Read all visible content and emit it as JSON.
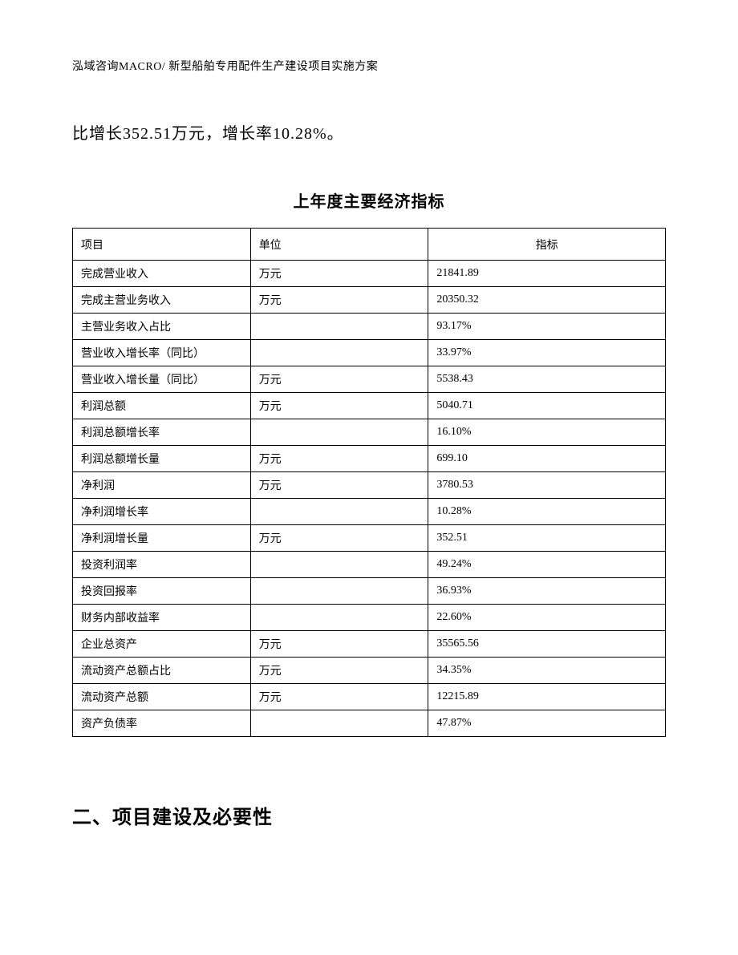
{
  "header": "泓域咨询MACRO/ 新型船舶专用配件生产建设项目实施方案",
  "intro_text": "比增长352.51万元，增长率10.28%。",
  "table": {
    "title": "上年度主要经济指标",
    "columns": {
      "item": "项目",
      "unit": "单位",
      "value": "指标"
    },
    "rows": [
      {
        "item": "完成营业收入",
        "unit": "万元",
        "value": "21841.89"
      },
      {
        "item": "完成主营业务收入",
        "unit": "万元",
        "value": "20350.32"
      },
      {
        "item": "主营业务收入占比",
        "unit": "",
        "value": "93.17%"
      },
      {
        "item": "营业收入增长率（同比）",
        "unit": "",
        "value": "33.97%"
      },
      {
        "item": "营业收入增长量（同比）",
        "unit": "万元",
        "value": "5538.43"
      },
      {
        "item": "利润总额",
        "unit": "万元",
        "value": "5040.71"
      },
      {
        "item": "利润总额增长率",
        "unit": "",
        "value": "16.10%"
      },
      {
        "item": "利润总额增长量",
        "unit": "万元",
        "value": "699.10"
      },
      {
        "item": "净利润",
        "unit": "万元",
        "value": "3780.53"
      },
      {
        "item": "净利润增长率",
        "unit": "",
        "value": "10.28%"
      },
      {
        "item": "净利润增长量",
        "unit": "万元",
        "value": "352.51"
      },
      {
        "item": "投资利润率",
        "unit": "",
        "value": "49.24%"
      },
      {
        "item": "投资回报率",
        "unit": "",
        "value": "36.93%"
      },
      {
        "item": "财务内部收益率",
        "unit": "",
        "value": "22.60%"
      },
      {
        "item": "企业总资产",
        "unit": "万元",
        "value": "35565.56"
      },
      {
        "item": "流动资产总额占比",
        "unit": "万元",
        "value": "34.35%"
      },
      {
        "item": "流动资产总额",
        "unit": "万元",
        "value": "12215.89"
      },
      {
        "item": "资产负债率",
        "unit": "",
        "value": "47.87%"
      }
    ]
  },
  "section_heading": "二、项目建设及必要性"
}
